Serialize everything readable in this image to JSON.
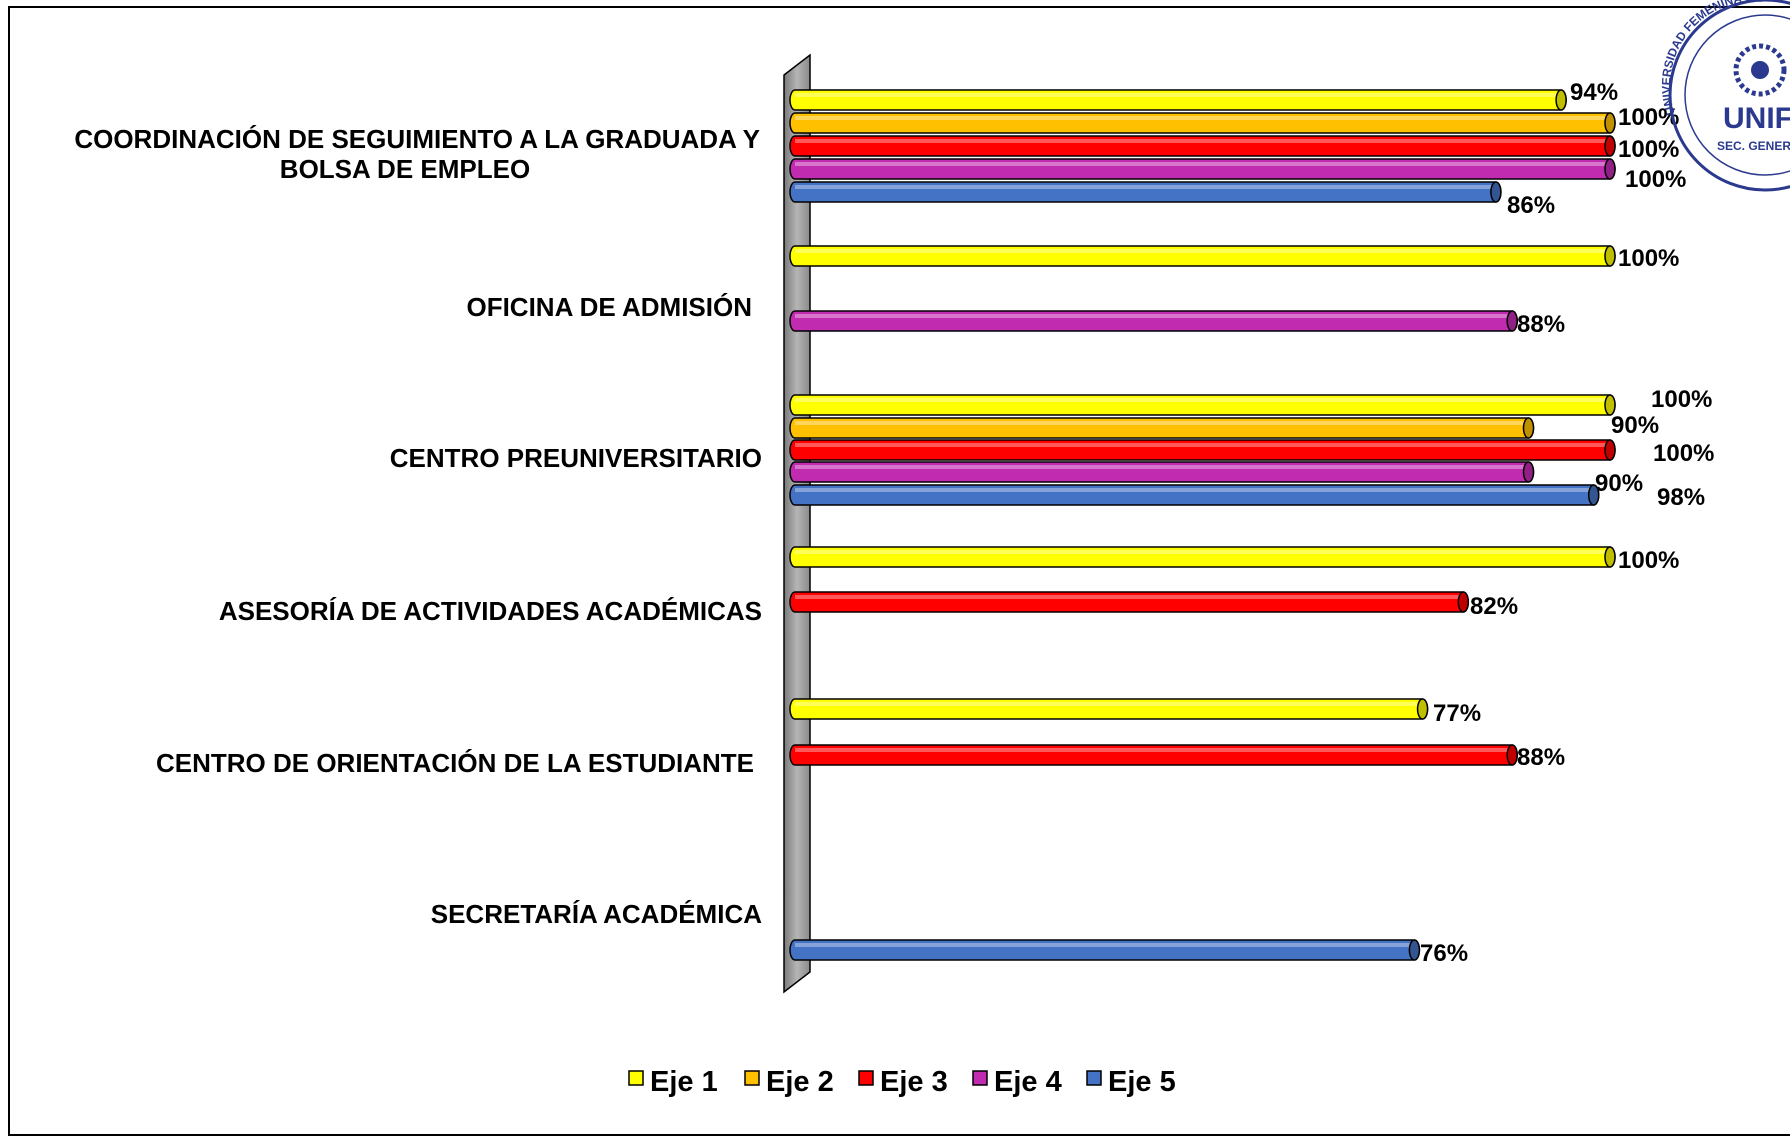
{
  "chart_data": {
    "type": "bar",
    "orientation": "horizontal",
    "categories": [
      [
        "COORDINACIÓN DE SEGUIMIENTO A LA GRADUADA Y",
        "BOLSA DE EMPLEO"
      ],
      [
        "OFICINA DE ADMISIÓN"
      ],
      [
        "CENTRO PREUNIVERSITARIO"
      ],
      [
        "ASESORÍA DE ACTIVIDADES ACADÉMICAS"
      ],
      [
        "CENTRO DE ORIENTACIÓN DE LA ESTUDIANTE"
      ],
      [
        "SECRETARÍA ACADÉMICA"
      ]
    ],
    "series": [
      {
        "name": "Eje 1",
        "color": "#FFFF00",
        "values": [
          94,
          100,
          100,
          100,
          77,
          null
        ]
      },
      {
        "name": "Eje 2",
        "color": "#FFC000",
        "values": [
          100,
          null,
          90,
          null,
          null,
          null
        ]
      },
      {
        "name": "Eje 3",
        "color": "#FF0000",
        "values": [
          100,
          null,
          100,
          82,
          88,
          null
        ]
      },
      {
        "name": "Eje 4",
        "color": "#C02BB0",
        "values": [
          100,
          88,
          90,
          null,
          null,
          null
        ]
      },
      {
        "name": "Eje 5",
        "color": "#4472C4",
        "values": [
          86,
          null,
          98,
          null,
          null,
          76
        ]
      }
    ],
    "value_format": "{v}%",
    "xlim": [
      0,
      100
    ],
    "legend_position": "bottom",
    "grid": false
  },
  "seal": {
    "text_arc": "UNIVERSIDAD FEMENINA DE",
    "acronym": "UNIF",
    "subtitle": "SEC. GENERAL"
  }
}
